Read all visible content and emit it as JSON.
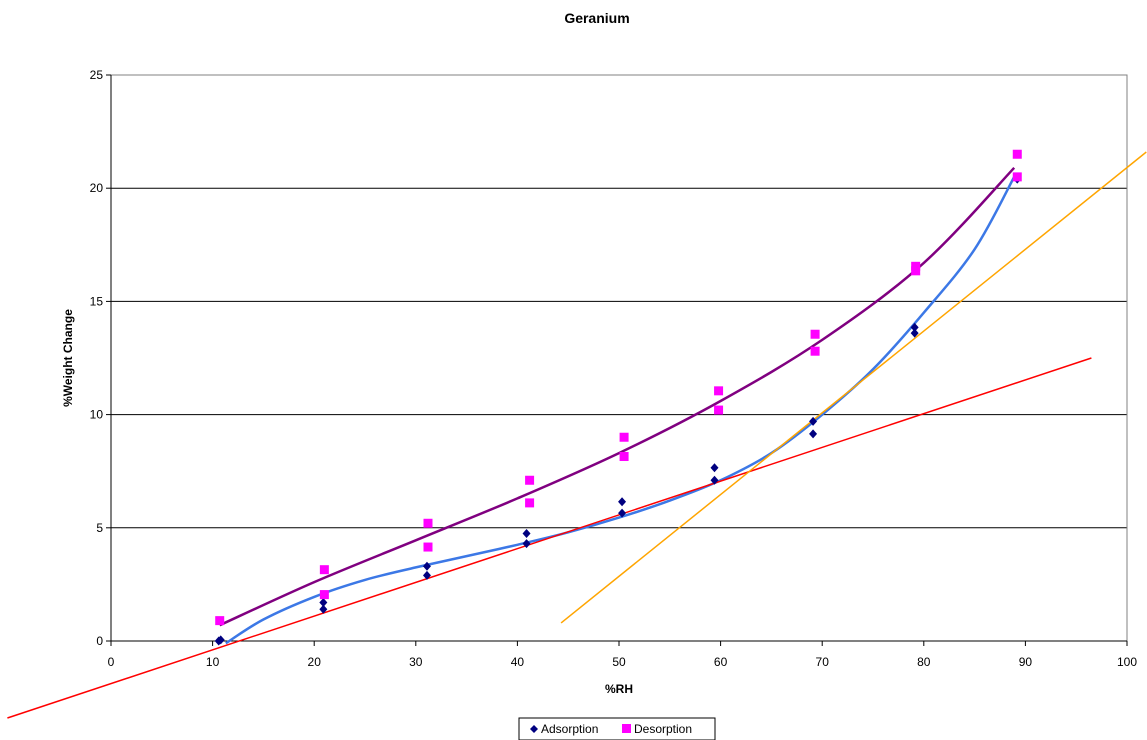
{
  "chart_data": {
    "type": "scatter",
    "title": "Geranium",
    "xlabel": "%RH",
    "ylabel": "%Weight Change",
    "xlim": [
      0,
      100
    ],
    "ylim": [
      0,
      25
    ],
    "xticks": [
      0,
      10,
      20,
      30,
      40,
      50,
      60,
      70,
      80,
      90,
      100
    ],
    "yticks": [
      0,
      5,
      10,
      15,
      20,
      25
    ],
    "grid": "horizontal",
    "legend_position": "bottom",
    "series": [
      {
        "name": "Adsorption",
        "marker": "diamond",
        "color": "#000080",
        "points": [
          [
            10.8,
            0.05
          ],
          [
            10.6,
            0.0
          ],
          [
            20.9,
            1.4
          ],
          [
            20.9,
            1.7
          ],
          [
            31.1,
            2.9
          ],
          [
            31.1,
            3.3
          ],
          [
            40.9,
            4.3
          ],
          [
            40.9,
            4.75
          ],
          [
            50.3,
            5.65
          ],
          [
            50.3,
            6.15
          ],
          [
            59.4,
            7.1
          ],
          [
            59.4,
            7.65
          ],
          [
            69.1,
            9.15
          ],
          [
            69.1,
            9.7
          ],
          [
            79.1,
            13.6
          ],
          [
            79.1,
            13.85
          ],
          [
            89.2,
            20.4
          ]
        ]
      },
      {
        "name": "Desorption",
        "marker": "square",
        "color": "#ff00ff",
        "points": [
          [
            10.7,
            0.9
          ],
          [
            21.0,
            2.05
          ],
          [
            21.0,
            3.15
          ],
          [
            31.2,
            4.15
          ],
          [
            31.2,
            5.2
          ],
          [
            41.2,
            6.1
          ],
          [
            41.2,
            7.1
          ],
          [
            50.5,
            8.15
          ],
          [
            50.5,
            9.0
          ],
          [
            59.8,
            10.2
          ],
          [
            59.8,
            11.05
          ],
          [
            69.3,
            12.8
          ],
          [
            69.3,
            13.55
          ],
          [
            79.2,
            16.35
          ],
          [
            79.2,
            16.55
          ],
          [
            89.2,
            20.5
          ],
          [
            89.2,
            21.5
          ]
        ]
      }
    ],
    "trendlines": [
      {
        "color": "#800080",
        "points": [
          [
            10.7,
            0.7
          ],
          [
            20,
            2.6
          ],
          [
            30,
            4.45
          ],
          [
            40,
            6.3
          ],
          [
            50,
            8.3
          ],
          [
            60,
            10.6
          ],
          [
            70,
            13.3
          ],
          [
            80,
            16.7
          ],
          [
            88.9,
            20.9
          ]
        ]
      },
      {
        "color": "#3c78e6",
        "points": [
          [
            11.3,
            -0.1
          ],
          [
            15,
            0.95
          ],
          [
            20,
            1.95
          ],
          [
            25,
            2.7
          ],
          [
            30,
            3.25
          ],
          [
            35,
            3.75
          ],
          [
            40,
            4.25
          ],
          [
            45,
            4.8
          ],
          [
            50,
            5.45
          ],
          [
            55,
            6.2
          ],
          [
            60,
            7.1
          ],
          [
            65,
            8.3
          ],
          [
            70,
            10.0
          ],
          [
            75,
            12.0
          ],
          [
            80,
            14.5
          ],
          [
            85,
            17.3
          ],
          [
            88.9,
            20.5
          ]
        ]
      },
      {
        "color": "#ff0000",
        "points": [
          [
            -10.2,
            -3.4
          ],
          [
            96.5,
            12.5
          ]
        ]
      },
      {
        "color": "#ffa500",
        "points": [
          [
            44.3,
            0.8
          ],
          [
            101.9,
            21.6
          ]
        ]
      }
    ]
  }
}
